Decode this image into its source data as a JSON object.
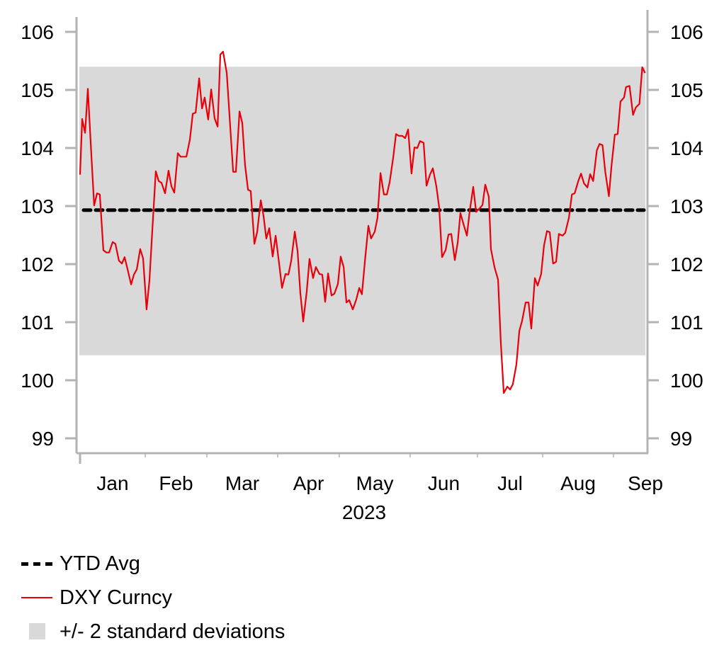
{
  "chart_data": {
    "type": "line",
    "title": "",
    "xlabel": "2023",
    "ylabel": "",
    "x_units": "day of year 2023 (0 = Jan 1)",
    "xlim": [
      0,
      258.4
    ],
    "ylim": [
      98.7,
      106.3
    ],
    "y_ticks": [
      99,
      100,
      101,
      102,
      103,
      104,
      105,
      106
    ],
    "y_tick_labels": [
      "99",
      "100",
      "101",
      "102",
      "103",
      "104",
      "105",
      "106"
    ],
    "x_month_boundaries": [
      0,
      31,
      59,
      90,
      120,
      151,
      181,
      212,
      243
    ],
    "x_tick_labels": [
      "Jan",
      "Feb",
      "Mar",
      "Apr",
      "May",
      "Jun",
      "Jul",
      "Aug",
      "Sep"
    ],
    "x_year_label": "2023",
    "dual_y_axis": true,
    "grid": false,
    "legend_position": "bottom-left",
    "band": {
      "name": "+/- 2 standard deviations",
      "lower": 100.43,
      "upper": 105.4,
      "color": "#d9d9d9"
    },
    "average": {
      "name": "YTD Avg",
      "value": 102.93,
      "color": "#000000",
      "style": "dashed"
    },
    "series": [
      {
        "name": "DXY Curncy",
        "color": "#e8000b",
        "points": [
          [
            0,
            103.54
          ],
          [
            1,
            104.5
          ],
          [
            2.4,
            104.26
          ],
          [
            3.7,
            105.02
          ],
          [
            5.4,
            103.87
          ],
          [
            6.7,
            103.01
          ],
          [
            8.1,
            103.22
          ],
          [
            9.4,
            103.2
          ],
          [
            11.1,
            102.24
          ],
          [
            12.5,
            102.2
          ],
          [
            13.8,
            102.2
          ],
          [
            15.5,
            102.38
          ],
          [
            16.8,
            102.35
          ],
          [
            18.5,
            102.06
          ],
          [
            19.9,
            102.01
          ],
          [
            21.2,
            102.12
          ],
          [
            22.6,
            101.91
          ],
          [
            24.3,
            101.65
          ],
          [
            25.6,
            101.82
          ],
          [
            27,
            101.91
          ],
          [
            28.6,
            102.26
          ],
          [
            30,
            102.1
          ],
          [
            31.6,
            101.22
          ],
          [
            32.9,
            101.71
          ],
          [
            34.2,
            102.56
          ],
          [
            35.8,
            103.6
          ],
          [
            37.1,
            103.43
          ],
          [
            38.4,
            103.4
          ],
          [
            40,
            103.22
          ],
          [
            41.6,
            103.61
          ],
          [
            42.9,
            103.34
          ],
          [
            44.2,
            103.23
          ],
          [
            45.8,
            103.91
          ],
          [
            47.1,
            103.85
          ],
          [
            49.7,
            103.85
          ],
          [
            51.3,
            104.15
          ],
          [
            52.6,
            104.59
          ],
          [
            53.9,
            104.61
          ],
          [
            55.5,
            105.2
          ],
          [
            56.8,
            104.68
          ],
          [
            58,
            104.87
          ],
          [
            59.6,
            104.49
          ],
          [
            60.9,
            105.01
          ],
          [
            62.4,
            104.51
          ],
          [
            63.7,
            104.37
          ],
          [
            64.9,
            105.61
          ],
          [
            66.1,
            105.66
          ],
          [
            67.7,
            105.29
          ],
          [
            70.5,
            103.59
          ],
          [
            71.7,
            103.59
          ],
          [
            73.3,
            104.63
          ],
          [
            74.5,
            104.43
          ],
          [
            75.7,
            103.71
          ],
          [
            77,
            103.28
          ],
          [
            78.2,
            103.26
          ],
          [
            79.8,
            102.35
          ],
          [
            81,
            102.55
          ],
          [
            82.6,
            103.1
          ],
          [
            83.8,
            102.83
          ],
          [
            85,
            102.44
          ],
          [
            86.3,
            102.62
          ],
          [
            87.8,
            102.13
          ],
          [
            89.1,
            102.49
          ],
          [
            90.7,
            102.01
          ],
          [
            92.1,
            101.59
          ],
          [
            93.8,
            101.83
          ],
          [
            95.2,
            101.82
          ],
          [
            96.6,
            102.06
          ],
          [
            98.3,
            102.56
          ],
          [
            99.7,
            102.22
          ],
          [
            101,
            101.51
          ],
          [
            102.4,
            101.01
          ],
          [
            104.1,
            101.52
          ],
          [
            105.5,
            102.09
          ],
          [
            107.2,
            101.76
          ],
          [
            108.6,
            101.95
          ],
          [
            110.3,
            101.83
          ],
          [
            111.7,
            101.82
          ],
          [
            113.1,
            101.35
          ],
          [
            114.5,
            101.84
          ],
          [
            116.2,
            101.46
          ],
          [
            117.6,
            101.49
          ],
          [
            119.3,
            101.66
          ],
          [
            120.6,
            102.13
          ],
          [
            121.9,
            101.95
          ],
          [
            123.1,
            101.34
          ],
          [
            124.3,
            101.38
          ],
          [
            125.9,
            101.22
          ],
          [
            127.4,
            101.39
          ],
          [
            128.7,
            101.59
          ],
          [
            129.9,
            101.48
          ],
          [
            131.2,
            102.05
          ],
          [
            132.7,
            102.66
          ],
          [
            133.9,
            102.44
          ],
          [
            135.5,
            102.56
          ],
          [
            136.7,
            102.8
          ],
          [
            138,
            103.57
          ],
          [
            139.5,
            103.2
          ],
          [
            140.8,
            103.2
          ],
          [
            142,
            103.41
          ],
          [
            143.6,
            103.84
          ],
          [
            144.8,
            104.24
          ],
          [
            146,
            104.21
          ],
          [
            147.6,
            104.21
          ],
          [
            148.8,
            104.17
          ],
          [
            150.1,
            104.32
          ],
          [
            151.6,
            103.56
          ],
          [
            152.9,
            104.01
          ],
          [
            154.2,
            104.0
          ],
          [
            155.4,
            104.12
          ],
          [
            157,
            104.09
          ],
          [
            158.3,
            103.35
          ],
          [
            159.8,
            103.54
          ],
          [
            161.1,
            103.65
          ],
          [
            162.7,
            103.34
          ],
          [
            163.9,
            102.98
          ],
          [
            165.2,
            102.12
          ],
          [
            166.8,
            102.24
          ],
          [
            168.1,
            102.51
          ],
          [
            169.3,
            102.52
          ],
          [
            170.9,
            102.07
          ],
          [
            172.2,
            102.37
          ],
          [
            173.4,
            102.88
          ],
          [
            174.7,
            102.7
          ],
          [
            176.3,
            102.49
          ],
          [
            177.5,
            102.9
          ],
          [
            179.1,
            103.33
          ],
          [
            180.4,
            102.9
          ],
          [
            182,
            102.96
          ],
          [
            183.4,
            103.02
          ],
          [
            184.7,
            103.37
          ],
          [
            186.4,
            103.16
          ],
          [
            187.4,
            102.26
          ],
          [
            189.1,
            101.95
          ],
          [
            190.8,
            101.73
          ],
          [
            192.1,
            100.66
          ],
          [
            193.5,
            99.78
          ],
          [
            195.2,
            99.89
          ],
          [
            196.5,
            99.84
          ],
          [
            197.8,
            99.93
          ],
          [
            199.5,
            100.27
          ],
          [
            200.9,
            100.85
          ],
          [
            202.2,
            101.02
          ],
          [
            203.9,
            101.34
          ],
          [
            205.3,
            101.34
          ],
          [
            206.6,
            100.89
          ],
          [
            208.3,
            101.76
          ],
          [
            209.6,
            101.63
          ],
          [
            211.3,
            101.83
          ],
          [
            212.6,
            102.32
          ],
          [
            213.9,
            102.57
          ],
          [
            215.1,
            102.55
          ],
          [
            216.6,
            102.01
          ],
          [
            217.9,
            102.04
          ],
          [
            219.1,
            102.52
          ],
          [
            220.7,
            102.49
          ],
          [
            221.9,
            102.54
          ],
          [
            223.5,
            102.8
          ],
          [
            224.8,
            103.2
          ],
          [
            226,
            103.22
          ],
          [
            227.6,
            103.43
          ],
          [
            228.8,
            103.56
          ],
          [
            230.1,
            103.39
          ],
          [
            231.6,
            103.32
          ],
          [
            232.8,
            103.55
          ],
          [
            234.1,
            103.43
          ],
          [
            235.7,
            103.96
          ],
          [
            236.9,
            104.07
          ],
          [
            238.2,
            104.05
          ],
          [
            239.4,
            103.59
          ],
          [
            241,
            103.17
          ],
          [
            242.2,
            103.72
          ],
          [
            243.6,
            104.23
          ],
          [
            244.9,
            104.24
          ],
          [
            246.2,
            104.8
          ],
          [
            247.8,
            104.87
          ],
          [
            248.7,
            105.05
          ],
          [
            250.3,
            105.07
          ],
          [
            251.9,
            104.57
          ],
          [
            253.2,
            104.7
          ],
          [
            254.8,
            104.76
          ],
          [
            256.1,
            105.39
          ],
          [
            257.4,
            105.29
          ]
        ]
      }
    ]
  },
  "legend": {
    "items": [
      {
        "label": "YTD Avg",
        "icon": "dashed-line"
      },
      {
        "label": "DXY Curncy",
        "icon": "red-line"
      },
      {
        "label": "+/- 2 standard deviations",
        "icon": "gray-box"
      }
    ]
  }
}
